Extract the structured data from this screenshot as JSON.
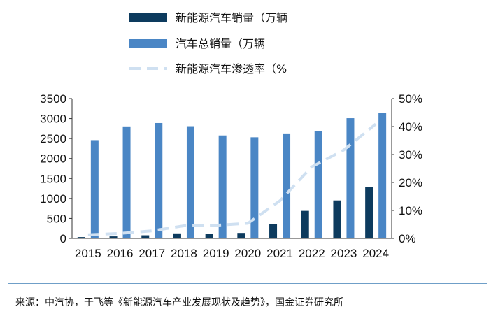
{
  "chart_data": {
    "type": "bar",
    "categories": [
      "2015",
      "2016",
      "2017",
      "2018",
      "2019",
      "2020",
      "2021",
      "2022",
      "2023",
      "2024"
    ],
    "series": [
      {
        "name": "新能源汽车销量（万辆",
        "kind": "bar",
        "axis": "left",
        "color": "#0d3b5e",
        "values": [
          33,
          51,
          78,
          126,
          121,
          137,
          352,
          689,
          950,
          1287
        ]
      },
      {
        "name": "汽车总销量（万辆",
        "kind": "bar",
        "axis": "left",
        "color": "#4a86c5",
        "values": [
          2460,
          2803,
          2888,
          2808,
          2577,
          2531,
          2627,
          2686,
          3009,
          3144
        ]
      },
      {
        "name": "新能源汽车渗透率（%",
        "kind": "line",
        "axis": "right",
        "color": "#cfe0f1",
        "dashed": true,
        "values": [
          1.3,
          1.8,
          2.7,
          4.5,
          4.7,
          5.4,
          13.4,
          25.6,
          31.6,
          40.9
        ]
      }
    ],
    "yticks_left": [
      "0",
      "500",
      "1000",
      "1500",
      "2000",
      "2500",
      "3000",
      "3500"
    ],
    "yticks_right": [
      "0%",
      "10%",
      "20%",
      "30%",
      "40%",
      "50%"
    ],
    "ylim_left": [
      0,
      3500
    ],
    "ylim_right": [
      0,
      50
    ],
    "legend_position": "top-center",
    "grid": false
  },
  "source": "来源：中汽协，于飞等《新能源汽车产业发展现状及趋势》，国金证券研究所"
}
